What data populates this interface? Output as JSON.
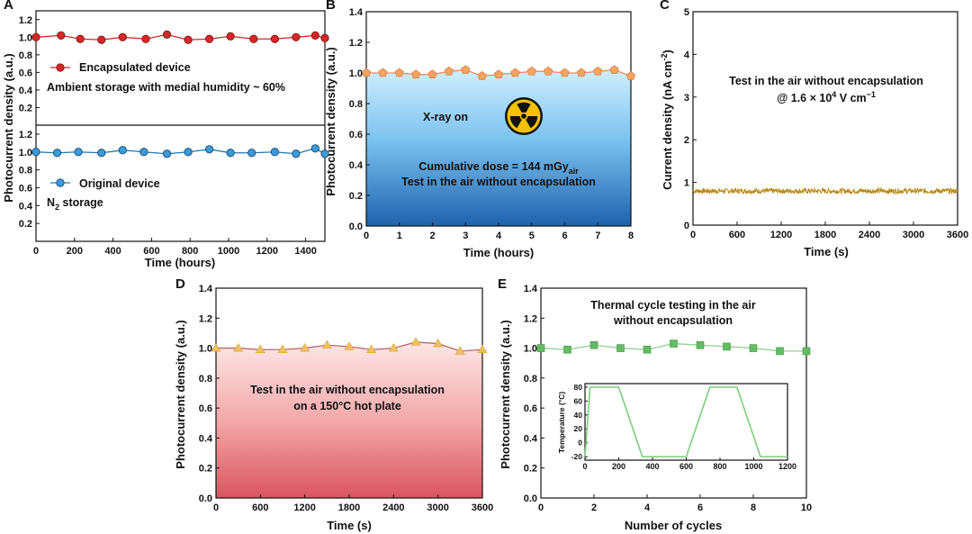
{
  "chart_data": [
    {
      "panel": "A",
      "type": "line",
      "xlabel": "Time (hours)",
      "ylabel": "Photocurrent density (a.u.)",
      "xlim": [
        0,
        1500
      ],
      "xticks": [
        "0",
        "200",
        "400",
        "600",
        "800",
        "1000",
        "1200",
        "1400"
      ],
      "subplots": [
        {
          "ylim": [
            0,
            1.3
          ],
          "yticks": [
            "0.2",
            "0.4",
            "0.6",
            "0.8",
            "1.0",
            "1.2"
          ],
          "legend": "Encapsulated device",
          "annotation": "Ambient storage with medial humidity ~ 60%",
          "color": "#d62728",
          "x": [
            0,
            130,
            230,
            340,
            450,
            570,
            680,
            790,
            900,
            1010,
            1130,
            1240,
            1350,
            1450,
            1500
          ],
          "y": [
            1.0,
            1.02,
            0.98,
            0.97,
            1.0,
            0.98,
            1.03,
            0.97,
            0.98,
            1.01,
            0.98,
            0.98,
            1.0,
            1.02,
            0.99
          ]
        },
        {
          "ylim": [
            0,
            1.3
          ],
          "yticks": [
            "0.2",
            "0.4",
            "0.6",
            "0.8",
            "1.0",
            "1.2"
          ],
          "legend": "Original device",
          "annotation_main": "N",
          "annotation_sub": "2",
          "annotation_rest": " storage",
          "color": "#1f77b4",
          "x": [
            0,
            110,
            220,
            340,
            450,
            560,
            680,
            790,
            900,
            1010,
            1120,
            1240,
            1350,
            1450,
            1500
          ],
          "y": [
            1.0,
            0.99,
            1.0,
            0.99,
            1.02,
            1.0,
            0.98,
            1.0,
            1.03,
            0.99,
            0.99,
            1.0,
            0.98,
            1.04,
            0.98
          ]
        }
      ]
    },
    {
      "panel": "B",
      "type": "line",
      "xlabel": "Time (hours)",
      "ylabel": "Photocurrent density (a.u.)",
      "xlim": [
        0,
        8
      ],
      "ylim": [
        0,
        1.4
      ],
      "xticks": [
        "0",
        "1",
        "2",
        "3",
        "4",
        "5",
        "6",
        "7",
        "8"
      ],
      "yticks": [
        "0.0",
        "0.2",
        "0.4",
        "0.6",
        "0.8",
        "1.0",
        "1.2",
        "1.4"
      ],
      "color": "#f4a460",
      "x": [
        0,
        0.5,
        1,
        1.5,
        2,
        2.5,
        3,
        3.5,
        4,
        4.5,
        5,
        5.5,
        6,
        6.5,
        7,
        7.5,
        8
      ],
      "y": [
        1.0,
        1.0,
        1.0,
        0.99,
        0.99,
        1.01,
        1.02,
        0.98,
        0.99,
        1.0,
        1.01,
        1.01,
        1.0,
        1.0,
        1.01,
        1.02,
        0.98
      ],
      "annotation_xray": "X-ray on",
      "annotation_dose": "Cumulative dose = 144 mGy",
      "annotation_dose_sub": "air",
      "annotation_test": "Test in the air without encapsulation"
    },
    {
      "panel": "C",
      "type": "line",
      "xlabel": "Time (s)",
      "ylabel_main": "Current density (nA cm",
      "ylabel_sup": "-2",
      "ylabel_end": ")",
      "xlim": [
        0,
        3600
      ],
      "ylim": [
        0,
        5
      ],
      "xticks": [
        "0",
        "600",
        "1200",
        "1800",
        "2400",
        "3000",
        "3600"
      ],
      "yticks": [
        "0",
        "1",
        "2",
        "3",
        "4",
        "5"
      ],
      "level": 0.8,
      "color": "#b8860b",
      "annotation_line1": "Test in the air without encapsulation",
      "annotation_line2_a": "@ 1.6 × 10",
      "annotation_line2_sup": "4",
      "annotation_line2_b": " V cm",
      "annotation_line2_sup2": "−1"
    },
    {
      "panel": "D",
      "type": "line",
      "xlabel": "Time (s)",
      "ylabel": "Photocurrent density (a.u.)",
      "xlim": [
        0,
        3600
      ],
      "ylim": [
        0,
        1.4
      ],
      "xticks": [
        "0",
        "600",
        "1200",
        "1800",
        "2400",
        "3000",
        "3600"
      ],
      "yticks": [
        "0.0",
        "0.2",
        "0.4",
        "0.6",
        "0.8",
        "1.0",
        "1.2",
        "1.4"
      ],
      "color": "#f0c060",
      "x": [
        0,
        300,
        600,
        900,
        1200,
        1500,
        1800,
        2100,
        2400,
        2700,
        3000,
        3300,
        3600
      ],
      "y": [
        1.0,
        1.0,
        0.99,
        0.99,
        1.0,
        1.02,
        1.01,
        0.99,
        1.0,
        1.04,
        1.03,
        0.98,
        0.99
      ],
      "annotation_line1": "Test in the air without encapsulation",
      "annotation_line2": "on a 150°C hot plate"
    },
    {
      "panel": "E",
      "type": "line",
      "xlabel": "Number of cycles",
      "ylabel": "Photocurrent density (a.u.)",
      "xlim": [
        0,
        10
      ],
      "ylim": [
        0,
        1.4
      ],
      "xticks": [
        "0",
        "2",
        "4",
        "6",
        "8",
        "10"
      ],
      "yticks": [
        "0.0",
        "0.2",
        "0.4",
        "0.6",
        "0.8",
        "1.0",
        "1.2",
        "1.4"
      ],
      "color": "#66bb66",
      "x": [
        0,
        1,
        2,
        3,
        4,
        5,
        6,
        7,
        8,
        9,
        10
      ],
      "y": [
        1.0,
        0.99,
        1.02,
        1.0,
        0.99,
        1.03,
        1.02,
        1.01,
        1.0,
        0.98,
        0.98
      ],
      "annotation_line1": "Thermal cycle testing in the air",
      "annotation_line2": "without encapsulation",
      "inset": {
        "ylabel": "Temperature (°C)",
        "xlim": [
          0,
          1200
        ],
        "ylim": [
          -25,
          85
        ],
        "xticks": [
          "0",
          "200",
          "400",
          "600",
          "800",
          "1000",
          "1200"
        ],
        "yticks": [
          "-20",
          "0",
          "20",
          "40",
          "60",
          "80"
        ],
        "x": [
          0,
          30,
          200,
          340,
          600,
          740,
          900,
          1040,
          1200
        ],
        "y": [
          -20,
          80,
          80,
          -20,
          -20,
          80,
          80,
          -20,
          -20
        ]
      }
    }
  ]
}
